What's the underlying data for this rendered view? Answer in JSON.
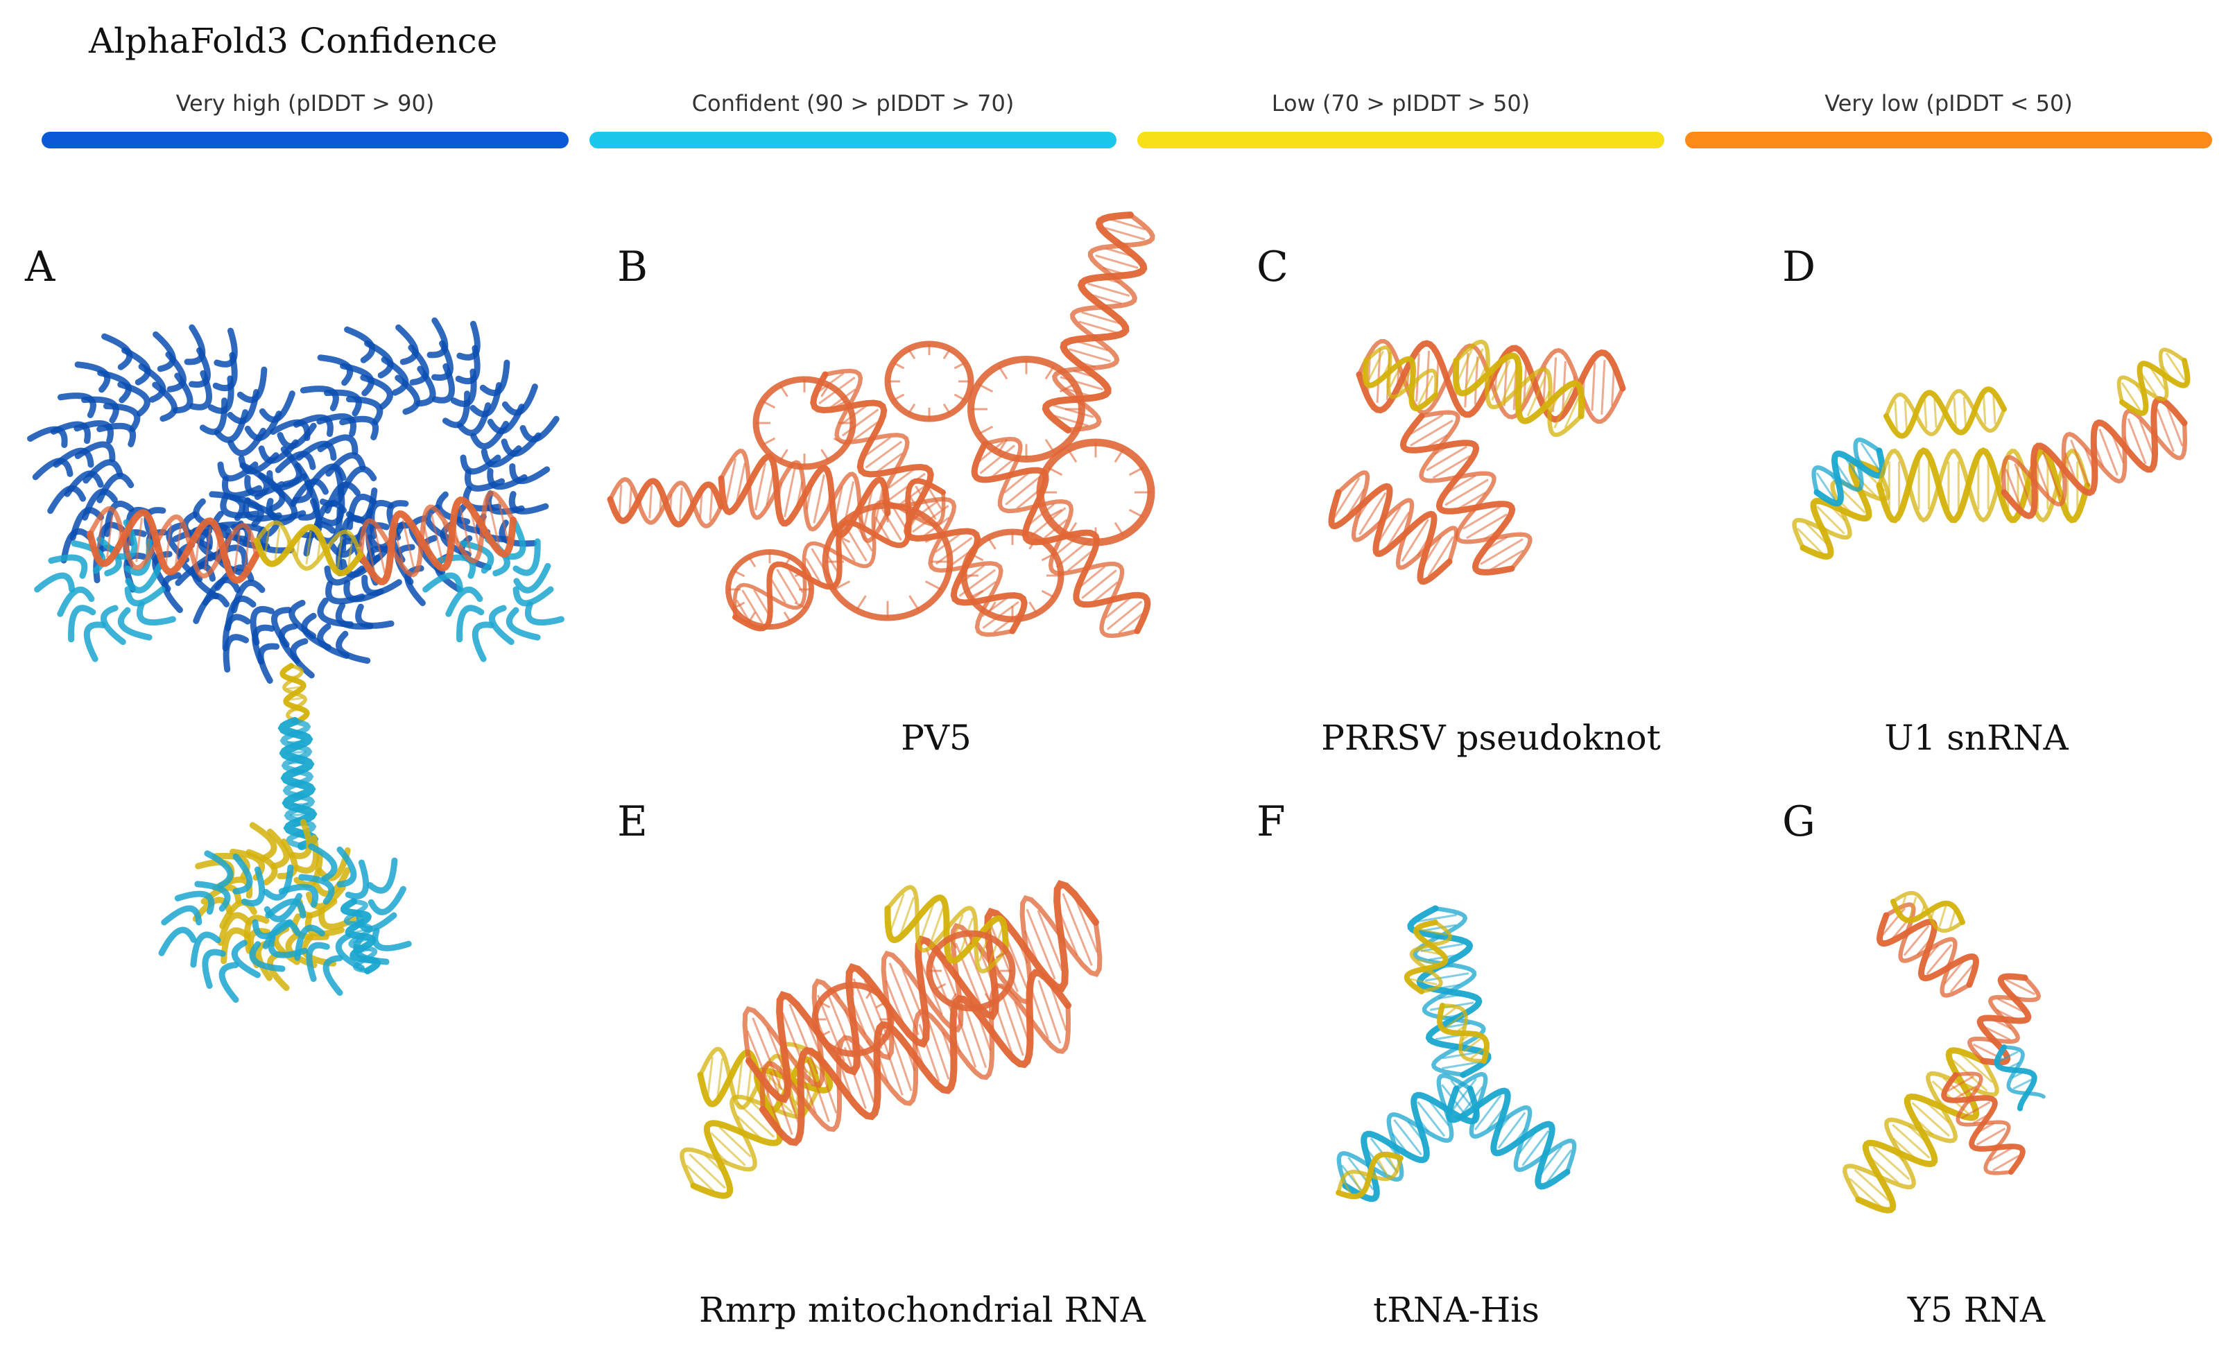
{
  "title": "AlphaFold3 Confidence",
  "legend": [
    {
      "label": "Very high (pIDDT > 90)",
      "color": "#0a5ad8"
    },
    {
      "label": "Confident (90 > pIDDT > 70)",
      "color": "#19c8ea"
    },
    {
      "label": "Low (70 > pIDDT > 50)",
      "color": "#f7e015"
    },
    {
      "label": "Very low (pIDDT < 50)",
      "color": "#fb8a17"
    }
  ],
  "colors": {
    "very_high": "#0b4fb3",
    "confident": "#1aa6cf",
    "low": "#d4b20b",
    "very_low": "#e06636"
  },
  "panels": {
    "A": {
      "letter": "A",
      "caption": ""
    },
    "B": {
      "letter": "B",
      "caption": "PV5"
    },
    "C": {
      "letter": "C",
      "caption": "PRRSV pseudoknot"
    },
    "D": {
      "letter": "D",
      "caption": "U1 snRNA"
    },
    "E": {
      "letter": "E",
      "caption": "Rmrp mitochondrial RNA"
    },
    "F": {
      "letter": "F",
      "caption": "tRNA-His"
    },
    "G": {
      "letter": "G",
      "caption": "Y5 RNA"
    }
  }
}
